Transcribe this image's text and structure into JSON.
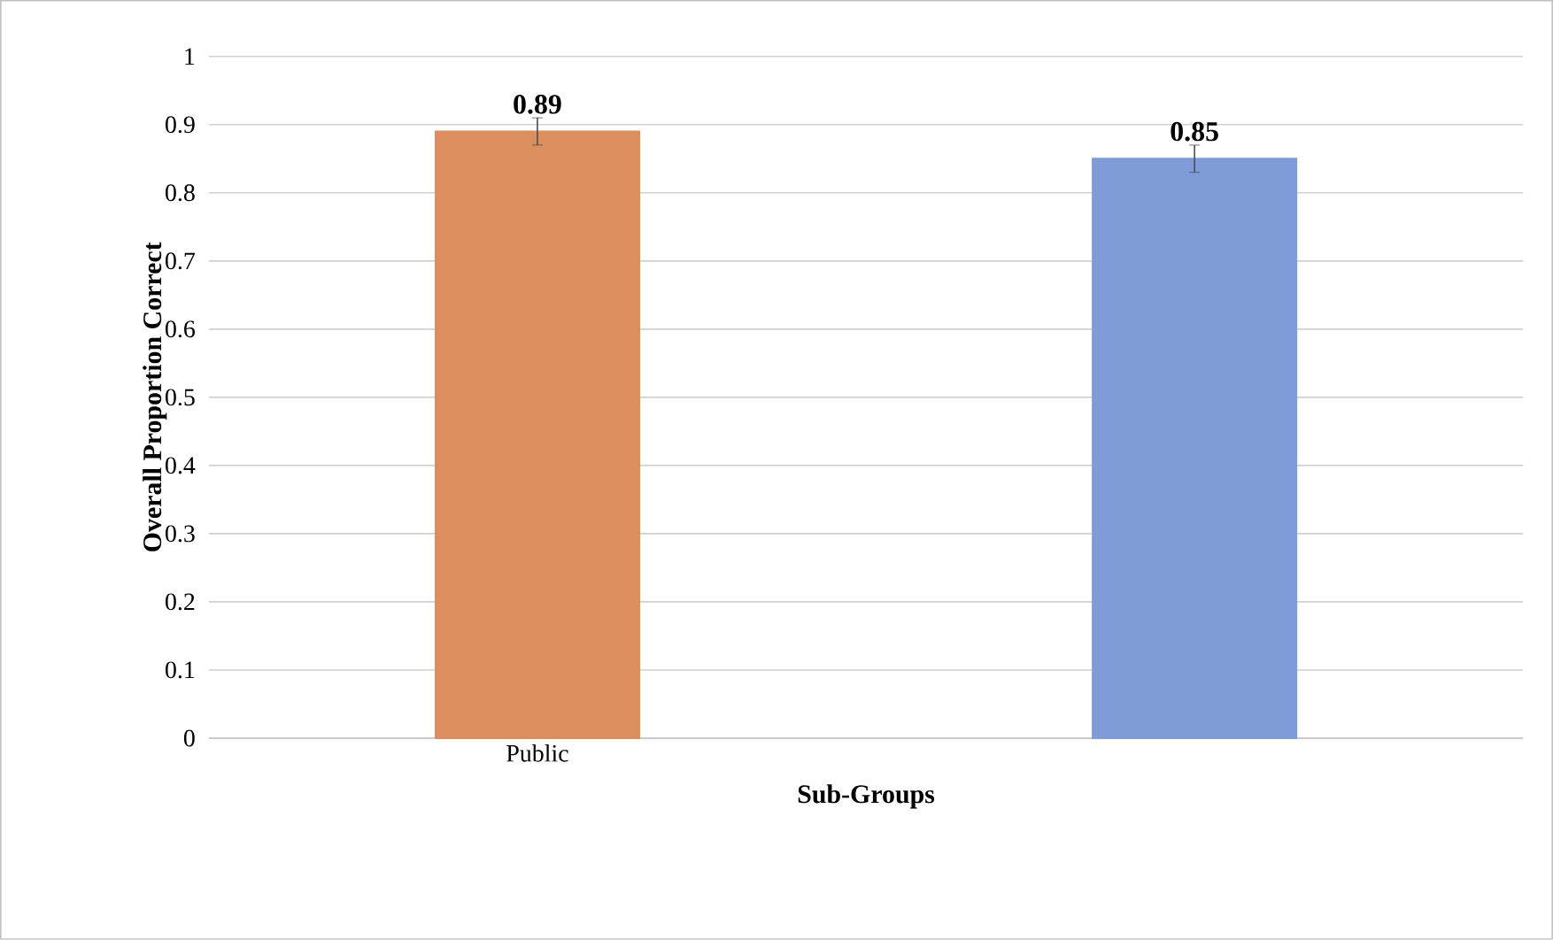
{
  "chart_data": {
    "type": "bar",
    "xlabel": "Sub-Groups",
    "ylabel": "Overall Proportion Correct",
    "categories": [
      "Public",
      null
    ],
    "values": [
      0.89,
      0.85
    ],
    "errors": [
      0.02,
      0.02
    ],
    "value_labels": [
      "0.89",
      "0.85"
    ],
    "colors": [
      "#dc8f5e",
      "#7f9cd8"
    ],
    "ylim": [
      0,
      1
    ],
    "yticks": [
      0,
      0.1,
      0.2,
      0.3,
      0.4,
      0.5,
      0.6,
      0.7,
      0.8,
      0.9,
      1
    ],
    "grid": "y"
  }
}
